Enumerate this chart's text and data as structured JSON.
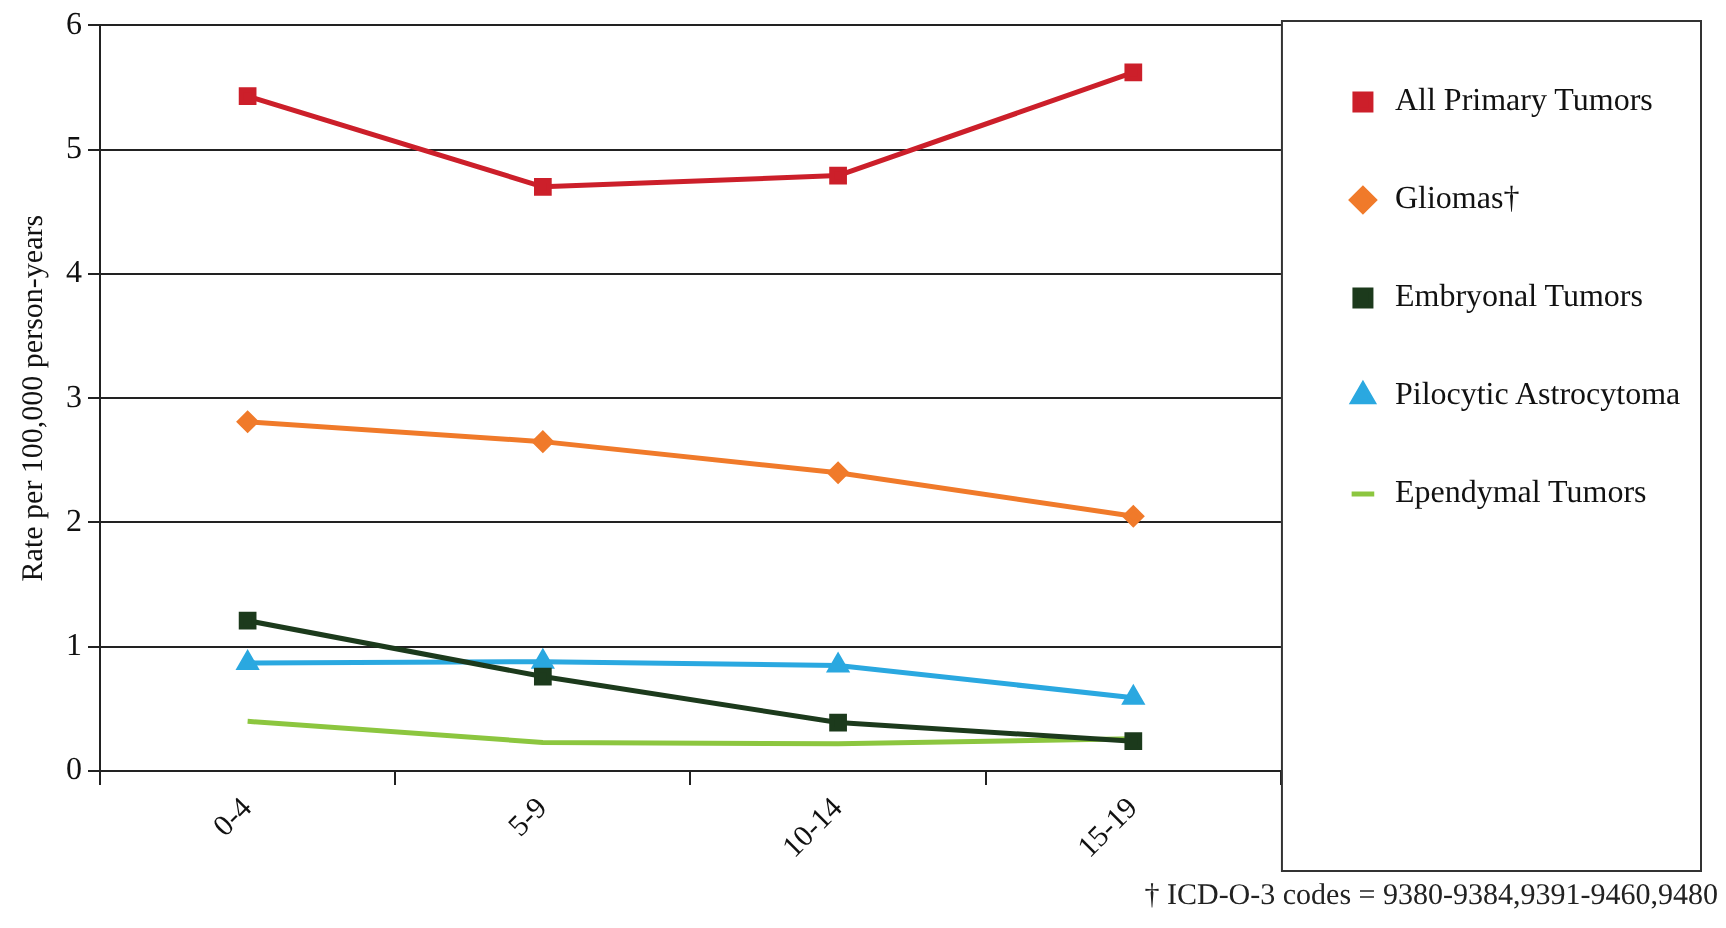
{
  "chart_data": {
    "type": "line",
    "ylabel": "Rate per 100,000 person-years",
    "categories": [
      "0-4",
      "5-9",
      "10-14",
      "15-19"
    ],
    "series": [
      {
        "name": "All Primary Tumors",
        "color": "#cc1f2a",
        "marker": "square",
        "values": [
          5.43,
          4.7,
          4.79,
          5.62
        ]
      },
      {
        "name": "Gliomas†",
        "color": "#f07a2a",
        "marker": "diamond",
        "values": [
          2.81,
          2.65,
          2.4,
          2.05
        ]
      },
      {
        "name": "Embryonal Tumors",
        "color": "#1c3a1c",
        "marker": "square",
        "values": [
          1.21,
          0.76,
          0.39,
          0.24
        ]
      },
      {
        "name": "Pilocytic Astrocytoma",
        "color": "#2aa8e0",
        "marker": "triangle",
        "values": [
          0.87,
          0.88,
          0.85,
          0.59
        ]
      },
      {
        "name": "Ependymal Tumors",
        "color": "#8cc63f",
        "marker": "none",
        "values": [
          0.4,
          0.23,
          0.22,
          0.26
        ]
      }
    ],
    "ylim": [
      0,
      6
    ],
    "yticks": [
      0,
      1,
      2,
      3,
      4,
      5,
      6
    ],
    "grid": "y",
    "legend": "right",
    "line_style": "solid",
    "annotations": [
      "† ICD-O-3 codes = 9380-9384,9391-9460,9480"
    ]
  }
}
